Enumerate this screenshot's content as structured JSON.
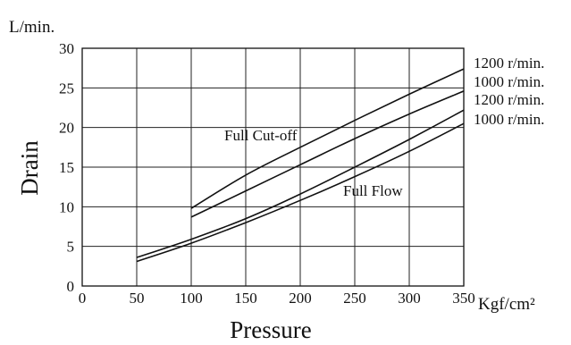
{
  "chart_data": {
    "type": "line",
    "y_unit": "L/min.",
    "x_unit": "Kgf/cm²",
    "xlabel": "Pressure",
    "ylabel": "Drain",
    "xlim": [
      0,
      350
    ],
    "ylim": [
      0,
      30
    ],
    "x_ticks": [
      "0",
      "50",
      "100",
      "150",
      "200",
      "250",
      "300",
      "350"
    ],
    "y_ticks": [
      "0",
      "5",
      "10",
      "15",
      "20",
      "25",
      "30"
    ],
    "grid": true,
    "annotations": [
      "Full Cut-off",
      "Full Flow"
    ],
    "series": [
      {
        "name": "1200 r/min.",
        "group": "Full Cut-off",
        "x": [
          100,
          150,
          200,
          250,
          300,
          350
        ],
        "y": [
          9.8,
          14.0,
          17.5,
          20.9,
          24.2,
          27.4
        ]
      },
      {
        "name": "1000 r/min.",
        "group": "Full Cut-off",
        "x": [
          100,
          150,
          200,
          250,
          300,
          350
        ],
        "y": [
          8.7,
          12.0,
          15.3,
          18.6,
          21.7,
          24.6
        ]
      },
      {
        "name": "1200 r/min.",
        "group": "Full Flow",
        "x": [
          50,
          100,
          150,
          200,
          250,
          300,
          350
        ],
        "y": [
          3.6,
          5.9,
          8.5,
          11.6,
          15.0,
          18.5,
          22.2
        ]
      },
      {
        "name": "1000 r/min.",
        "group": "Full Flow",
        "x": [
          50,
          100,
          150,
          200,
          250,
          300,
          350
        ],
        "y": [
          3.1,
          5.4,
          8.0,
          10.8,
          13.8,
          17.0,
          20.5
        ]
      }
    ]
  }
}
